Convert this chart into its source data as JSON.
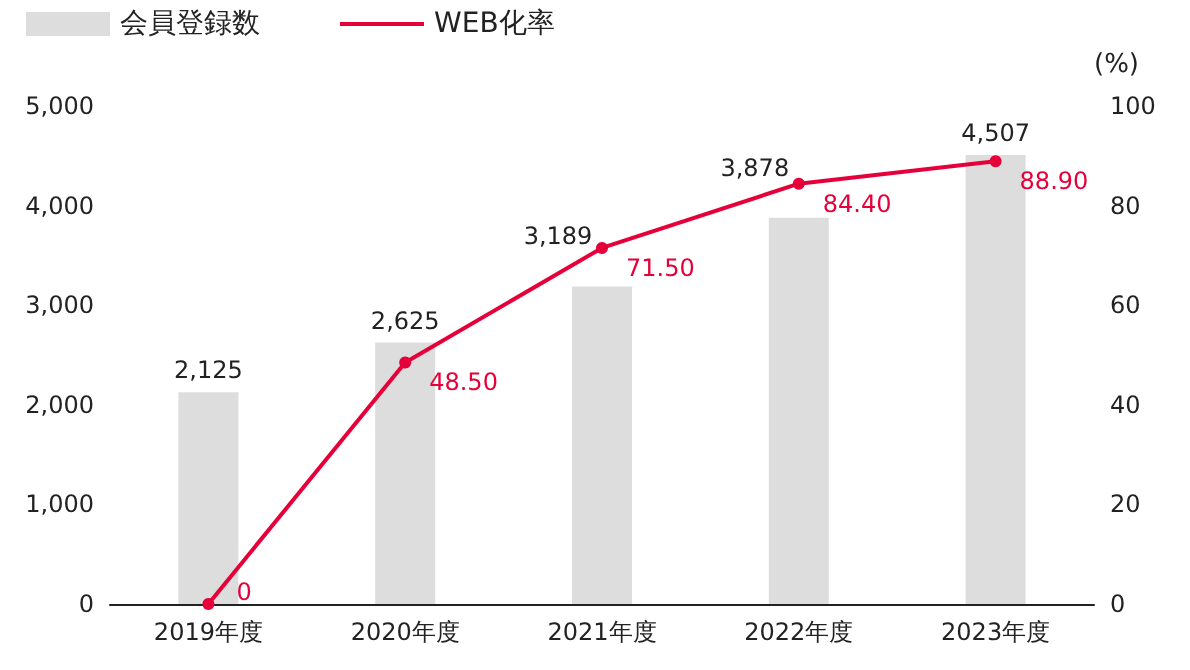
{
  "chart_data": {
    "type": "bar",
    "categories": [
      "2019年度",
      "2020年度",
      "2021年度",
      "2022年度",
      "2023年度"
    ],
    "series": [
      {
        "name": "会員登録数",
        "color": "#dddddd",
        "values": [
          2125,
          2625,
          3189,
          3878,
          4507
        ],
        "value_labels": [
          "2,125",
          "2,625",
          "3,189",
          "3,878",
          "4,507"
        ]
      },
      {
        "name": "WEB化率",
        "type": "line",
        "axis": "y2",
        "color": "#e5003a",
        "values": [
          0,
          48.5,
          71.5,
          84.4,
          88.9
        ],
        "value_labels": [
          "0",
          "48.50",
          "71.50",
          "84.40",
          "88.90"
        ]
      }
    ],
    "ylim": [
      0,
      5000
    ],
    "yticks": [
      {
        "value": 0,
        "label": "0"
      },
      {
        "value": 1000,
        "label": "1,000"
      },
      {
        "value": 2000,
        "label": "2,000"
      },
      {
        "value": 3000,
        "label": "3,000"
      },
      {
        "value": 4000,
        "label": "4,000"
      },
      {
        "value": 5000,
        "label": "5,000"
      }
    ],
    "y2lim": [
      0,
      100
    ],
    "y2ticks": [
      0,
      20,
      40,
      60,
      80,
      100
    ],
    "y2label": "(%)",
    "legend": "top left",
    "grid": false,
    "marker": "circle",
    "line_style": "solid"
  }
}
